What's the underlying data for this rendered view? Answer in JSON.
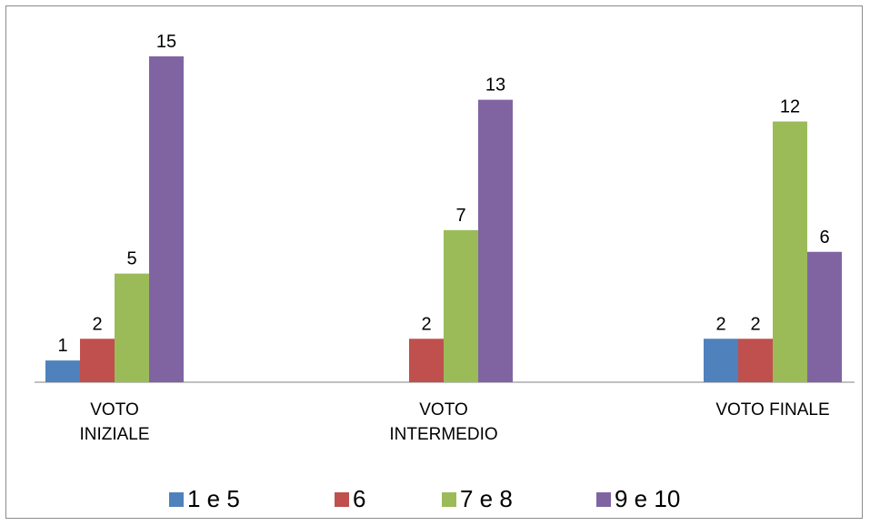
{
  "chart_data": {
    "type": "bar",
    "categories": [
      [
        "VOTO",
        "INIZIALE"
      ],
      [
        "VOTO",
        "INTERMEDIO"
      ],
      [
        "VOTO FINALE"
      ]
    ],
    "series": [
      {
        "name": "1 e 5",
        "color": "#4F81BD",
        "values": [
          1,
          null,
          2
        ]
      },
      {
        "name": "6",
        "color": "#C0504D",
        "values": [
          2,
          2,
          2
        ]
      },
      {
        "name": "7 e 8",
        "color": "#9BBB59",
        "values": [
          5,
          7,
          12
        ]
      },
      {
        "name": "9 e 10",
        "color": "#8064A2",
        "values": [
          15,
          13,
          6
        ]
      }
    ],
    "ylim": [
      0,
      16
    ],
    "grid": false,
    "legend_position": "bottom"
  }
}
